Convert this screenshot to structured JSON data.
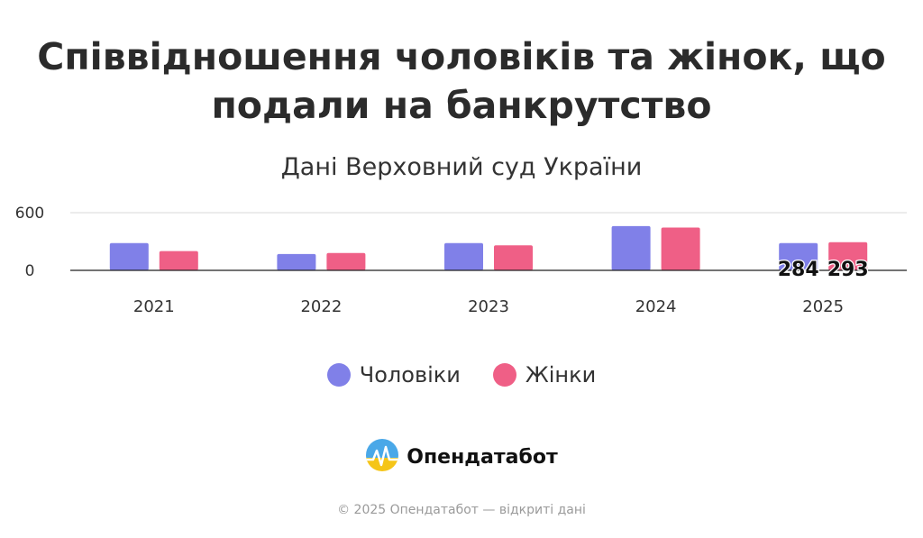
{
  "chart_data": {
    "type": "bar",
    "title": "Співвідношення чоловіків та жінок, що подали на банкрутство",
    "subtitle": "Дані Верховний суд України",
    "categories": [
      "2021",
      "2022",
      "2023",
      "2024",
      "2025"
    ],
    "series": [
      {
        "name": "Чоловіки",
        "color": "#8080e8",
        "values": [
          284,
          170,
          284,
          460,
          284
        ]
      },
      {
        "name": "Жінки",
        "color": "#ef5f86",
        "values": [
          200,
          180,
          260,
          445,
          293
        ]
      }
    ],
    "data_labels": [
      "284",
      "293"
    ],
    "y_ticks": [
      "600",
      "0"
    ],
    "ylim": [
      0,
      600
    ],
    "grid": true,
    "legend": "bottom"
  },
  "brand": {
    "name": "Опендатабот"
  },
  "footer": {
    "text": "© 2025 Опендатабот — відкриті дані"
  }
}
